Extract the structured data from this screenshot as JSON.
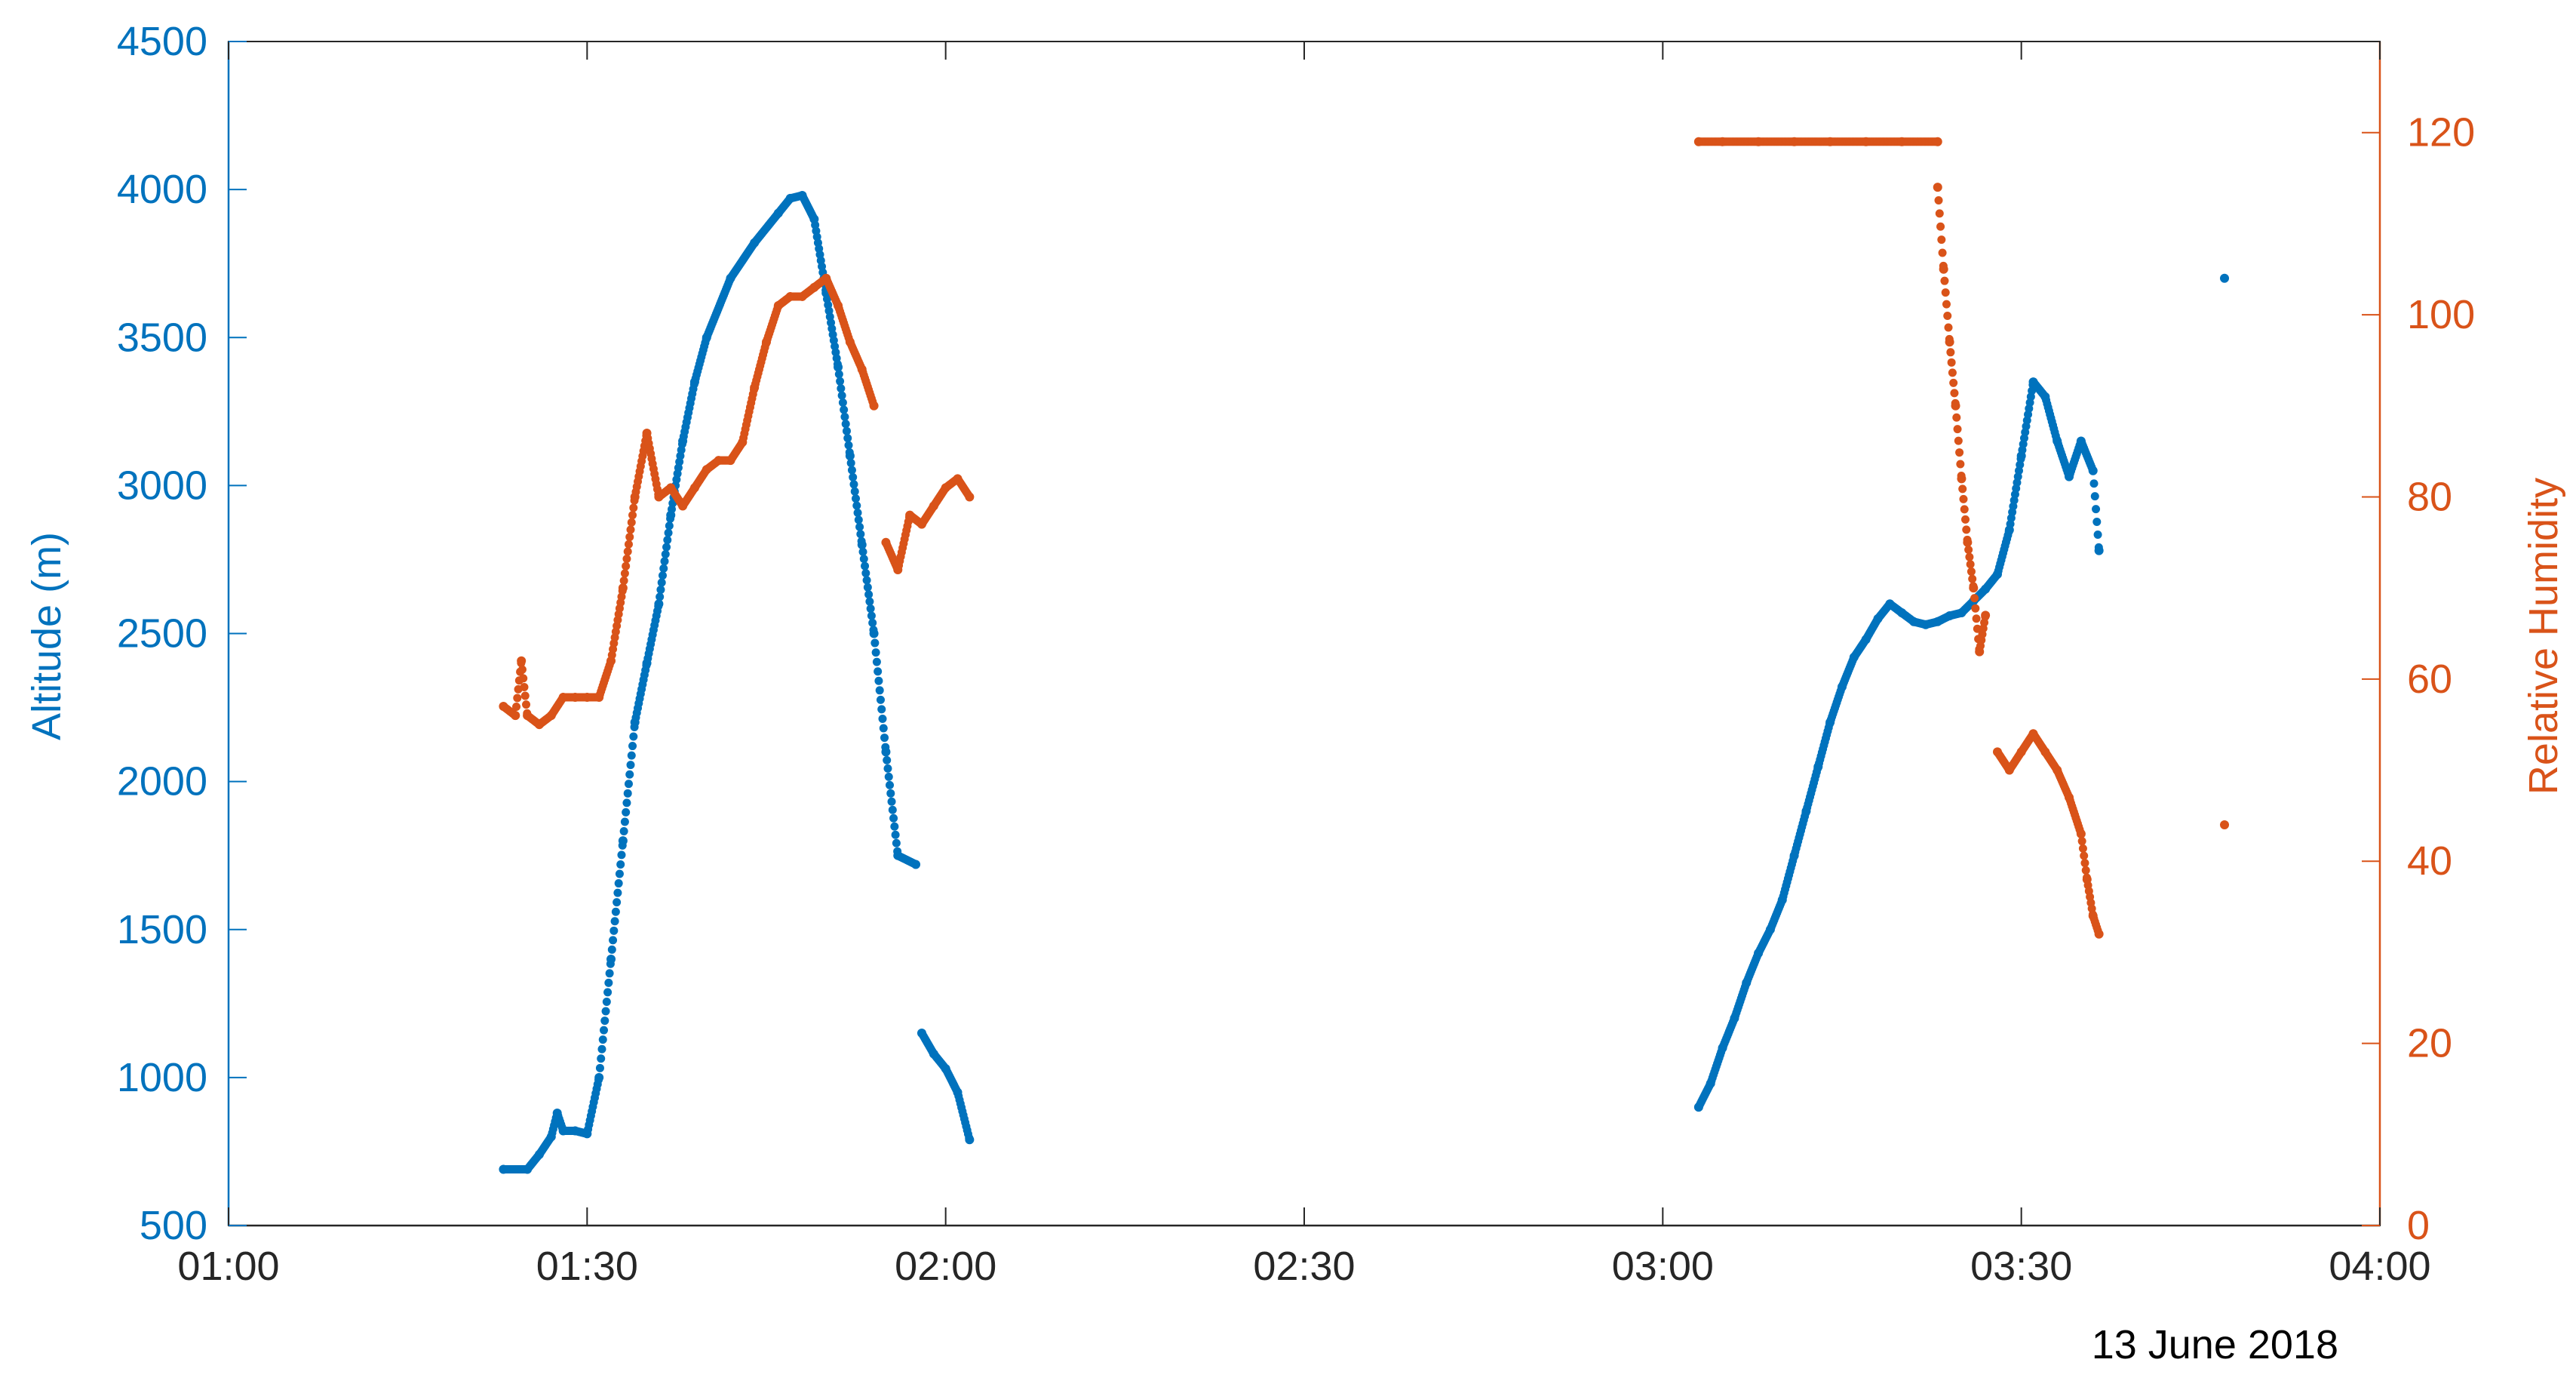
{
  "chart_data": {
    "type": "scatter",
    "xlabel": "",
    "date_label": "13 June 2018",
    "x_ticks": [
      "01:00",
      "01:30",
      "02:00",
      "02:30",
      "03:00",
      "03:30",
      "04:00"
    ],
    "xlim": [
      "01:00",
      "04:00"
    ],
    "y_left": {
      "label": "Altitude (m)",
      "ticks": [
        500,
        1000,
        1500,
        2000,
        2500,
        3000,
        3500,
        4000,
        4500
      ],
      "ylim": [
        500,
        4500
      ],
      "color": "#0072BD"
    },
    "y_right": {
      "label": "Relative Humidity",
      "ticks": [
        0,
        20,
        40,
        60,
        80,
        100,
        120
      ],
      "ylim": [
        0,
        130
      ],
      "color": "#D95319"
    },
    "grid": false,
    "series": [
      {
        "name": "Altitude (m)",
        "axis": "left",
        "color": "#0072BD",
        "points": [
          [
            "01:23",
            690
          ],
          [
            "01:25",
            690
          ],
          [
            "01:26",
            740
          ],
          [
            "01:27",
            800
          ],
          [
            "01:27.5",
            880
          ],
          [
            "01:28",
            820
          ],
          [
            "01:29",
            820
          ],
          [
            "01:30",
            810
          ],
          [
            "01:31",
            1000
          ],
          [
            "01:32",
            1400
          ],
          [
            "01:33",
            1800
          ],
          [
            "01:34",
            2200
          ],
          [
            "01:35",
            2400
          ],
          [
            "01:36",
            2600
          ],
          [
            "01:37",
            2900
          ],
          [
            "01:38",
            3150
          ],
          [
            "01:39",
            3350
          ],
          [
            "01:40",
            3500
          ],
          [
            "01:42",
            3700
          ],
          [
            "01:44",
            3820
          ],
          [
            "01:46",
            3920
          ],
          [
            "01:47",
            3970
          ],
          [
            "01:48",
            3980
          ],
          [
            "01:49",
            3900
          ],
          [
            "01:50",
            3650
          ],
          [
            "01:51",
            3400
          ],
          [
            "01:52",
            3100
          ],
          [
            "01:53",
            2800
          ],
          [
            "01:54",
            2500
          ],
          [
            "01:55",
            2100
          ],
          [
            "01:56",
            1750
          ],
          [
            "01:57.5",
            1720
          ],
          [
            "01:58",
            1150
          ],
          [
            "01:59",
            1080
          ],
          [
            "02:00",
            1030
          ],
          [
            "02:01",
            950
          ],
          [
            "02:02",
            790
          ],
          [
            "03:03",
            900
          ],
          [
            "03:04",
            980
          ],
          [
            "03:05",
            1100
          ],
          [
            "03:06",
            1200
          ],
          [
            "03:07",
            1320
          ],
          [
            "03:08",
            1420
          ],
          [
            "03:09",
            1500
          ],
          [
            "03:10",
            1600
          ],
          [
            "03:11",
            1750
          ],
          [
            "03:12",
            1900
          ],
          [
            "03:13",
            2050
          ],
          [
            "03:14",
            2200
          ],
          [
            "03:15",
            2320
          ],
          [
            "03:16",
            2420
          ],
          [
            "03:17",
            2480
          ],
          [
            "03:18",
            2550
          ],
          [
            "03:19",
            2600
          ],
          [
            "03:20",
            2570
          ],
          [
            "03:21",
            2540
          ],
          [
            "03:22",
            2530
          ],
          [
            "03:23",
            2540
          ],
          [
            "03:24",
            2560
          ],
          [
            "03:25",
            2570
          ],
          [
            "03:26",
            2610
          ],
          [
            "03:27",
            2650
          ],
          [
            "03:28",
            2700
          ],
          [
            "03:29",
            2850
          ],
          [
            "03:30",
            3100
          ],
          [
            "03:31",
            3350
          ],
          [
            "03:32",
            3300
          ],
          [
            "03:33",
            3150
          ],
          [
            "03:34",
            3030
          ],
          [
            "03:35",
            3150
          ],
          [
            "03:36",
            3050
          ],
          [
            "03:36.5",
            2780
          ],
          [
            "03:47",
            3700
          ]
        ]
      },
      {
        "name": "Relative Humidity",
        "axis": "right",
        "color": "#D95319",
        "points": [
          [
            "01:23",
            57
          ],
          [
            "01:24",
            56
          ],
          [
            "01:24.5",
            62
          ],
          [
            "01:25",
            56
          ],
          [
            "01:26",
            55
          ],
          [
            "01:27",
            56
          ],
          [
            "01:28",
            58
          ],
          [
            "01:29",
            58
          ],
          [
            "01:30",
            58
          ],
          [
            "01:31",
            58
          ],
          [
            "01:32",
            62
          ],
          [
            "01:33",
            70
          ],
          [
            "01:34",
            80
          ],
          [
            "01:35",
            87
          ],
          [
            "01:36",
            80
          ],
          [
            "01:37",
            81
          ],
          [
            "01:38",
            79
          ],
          [
            "01:39",
            81
          ],
          [
            "01:40",
            83
          ],
          [
            "01:41",
            84
          ],
          [
            "01:42",
            84
          ],
          [
            "01:43",
            86
          ],
          [
            "01:44",
            92
          ],
          [
            "01:45",
            97
          ],
          [
            "01:46",
            101
          ],
          [
            "01:47",
            102
          ],
          [
            "01:48",
            102
          ],
          [
            "01:49",
            103
          ],
          [
            "01:50",
            104
          ],
          [
            "01:51",
            101
          ],
          [
            "01:52",
            97
          ],
          [
            "01:53",
            94
          ],
          [
            "01:54",
            90
          ],
          [
            "01:55",
            75
          ],
          [
            "01:56",
            72
          ],
          [
            "01:57",
            78
          ],
          [
            "01:58",
            77
          ],
          [
            "01:59",
            79
          ],
          [
            "02:00",
            81
          ],
          [
            "02:01",
            82
          ],
          [
            "02:02",
            80
          ],
          [
            "03:03",
            119
          ],
          [
            "03:05",
            119
          ],
          [
            "03:08",
            119
          ],
          [
            "03:11",
            119
          ],
          [
            "03:14",
            119
          ],
          [
            "03:17",
            119
          ],
          [
            "03:20",
            119
          ],
          [
            "03:23",
            119
          ],
          [
            "03:23",
            114
          ],
          [
            "03:23.5",
            105
          ],
          [
            "03:24",
            97
          ],
          [
            "03:24.5",
            90
          ],
          [
            "03:25",
            82
          ],
          [
            "03:25.5",
            75
          ],
          [
            "03:26",
            70
          ],
          [
            "03:26.5",
            63
          ],
          [
            "03:27",
            67
          ],
          [
            "03:28",
            52
          ],
          [
            "03:29",
            50
          ],
          [
            "03:30",
            52
          ],
          [
            "03:31",
            54
          ],
          [
            "03:32",
            52
          ],
          [
            "03:33",
            50
          ],
          [
            "03:34",
            47
          ],
          [
            "03:35",
            43
          ],
          [
            "03:35.5",
            38
          ],
          [
            "03:36",
            34
          ],
          [
            "03:36.5",
            32
          ],
          [
            "03:47",
            44
          ]
        ]
      }
    ]
  }
}
